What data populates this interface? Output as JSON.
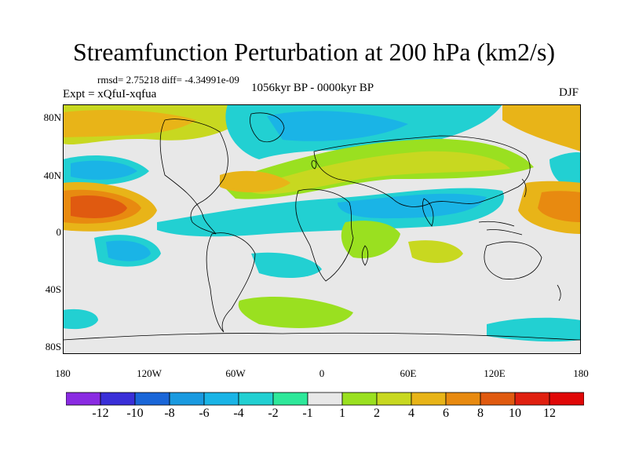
{
  "title": "Streamfunction Perturbation at 200 hPa (km2/s)",
  "stats_line": "rmsd= 2.75218 diff= -4.34991e-09",
  "experiment_label": "Expt = xQfuI-xqfua",
  "period_label": "1056kyr BP - 0000kyr BP",
  "season_label": "DJF",
  "lat_ticks": [
    "80N",
    "40N",
    "0",
    "40S",
    "80S"
  ],
  "lon_ticks": [
    "180",
    "120W",
    "60W",
    "0",
    "60E",
    "120E",
    "180"
  ],
  "colorbar": {
    "labels": [
      "-12",
      "-10",
      "-8",
      "-6",
      "-4",
      "-2",
      "-1",
      "1",
      "2",
      "4",
      "6",
      "8",
      "10",
      "12"
    ],
    "colors": [
      "#8a2be2",
      "#3a2fd8",
      "#1a66d8",
      "#1a9ae0",
      "#1ab4e6",
      "#22d0d2",
      "#2ee89a",
      "#e8e8e8",
      "#9ae020",
      "#c8d820",
      "#e8b418",
      "#e88a10",
      "#e05a10",
      "#e02010",
      "#e00808"
    ]
  },
  "colors": {
    "pos_light": "#c8d820",
    "pos_mid": "#e8b418",
    "pos_strong": "#e88a10",
    "pos_max": "#e05a10",
    "neg_light": "#2ee89a",
    "neg_mid": "#1ab4e6",
    "neg_strong": "#1a9ae0",
    "neutral": "#e8e8e8"
  }
}
